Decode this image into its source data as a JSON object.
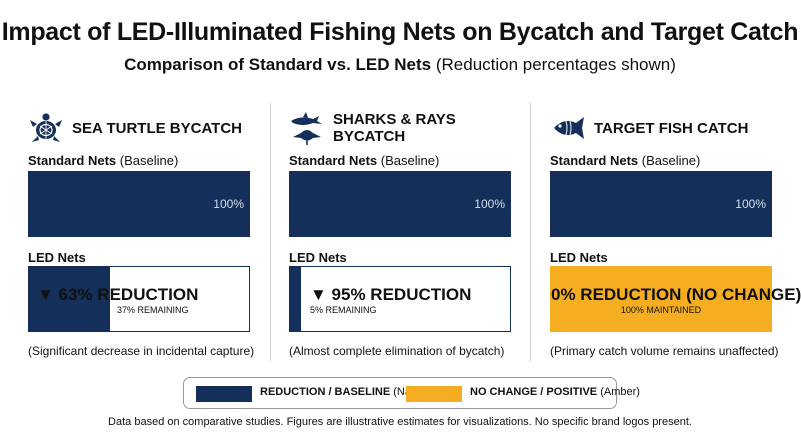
{
  "title": "Impact of LED-Illuminated Fishing Nets on Bycatch and Target Catch",
  "subtitle": {
    "bold": "Comparison of Standard vs. LED Nets",
    "rest": "(Reduction percentages shown)"
  },
  "colors": {
    "navy": "#14305a",
    "amber": "#f5ae22",
    "divider": "#cfcfcf"
  },
  "chart_data": {
    "type": "bar",
    "unit": "percent of baseline catch",
    "categories": [
      "SEA TURTLE BYCATCH",
      "SHARKS & RAYS BYCATCH",
      "TARGET FISH CATCH"
    ],
    "series": [
      {
        "name": "Standard Nets",
        "values": [
          100,
          100,
          100
        ]
      },
      {
        "name": "LED Nets",
        "values": [
          37,
          5,
          100
        ]
      }
    ],
    "reduction_percent": [
      63,
      95,
      0
    ],
    "ylim": [
      0,
      100
    ]
  },
  "panels": [
    {
      "icon": "sea-turtle-icon",
      "title": "SEA TURTLE BYCATCH",
      "std_label_bold": "Standard Nets",
      "std_label_rest": "(Baseline)",
      "std_value": "100%",
      "led_label": "LED Nets",
      "led_main": "▼ 63% REDUCTION",
      "led_sub": "37% REMAINING",
      "note": "(Significant decrease in incidental capture)"
    },
    {
      "icon": "shark-ray-icon",
      "title": "SHARKS & RAYS BYCATCH",
      "std_label_bold": "Standard Nets",
      "std_label_rest": "(Baseline)",
      "std_value": "100%",
      "led_label": "LED Nets",
      "led_main": "▼ 95% REDUCTION",
      "led_sub": "5% REMAINING",
      "note": "(Almost complete elimination of bycatch)"
    },
    {
      "icon": "fish-icon",
      "title": "TARGET FISH CATCH",
      "std_label_bold": "Standard Nets",
      "std_label_rest": "(Baseline)",
      "std_value": "100%",
      "led_label": "LED Nets",
      "led_main": "0% REDUCTION (NO CHANGE)",
      "led_sub": "100% MAINTAINED",
      "note": "(Primary catch volume remains unaffected)"
    }
  ],
  "legend": [
    {
      "bold": "REDUCTION / BASELINE",
      "rest": "(Navy)",
      "color": "#14305a"
    },
    {
      "bold": "NO CHANGE / POSITIVE",
      "rest": "(Amber)",
      "color": "#f5ae22"
    }
  ],
  "footer": "Data based on comparative studies. Figures are illustrative estimates for visualizations. No specific brand logos present."
}
